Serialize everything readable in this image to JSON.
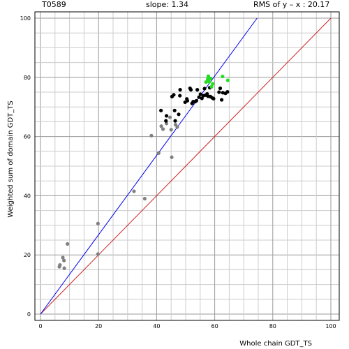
{
  "header": {
    "target_id": "T0589",
    "slope_text": "slope: 1.34",
    "rms_text": "RMS of  y – x : 20.17"
  },
  "chart_data": {
    "type": "scatter",
    "title": "",
    "xlabel": "Whole chain GDT_TS",
    "ylabel": "Weighted sum of domain GDT_TS",
    "xlim": [
      0,
      100
    ],
    "ylim": [
      0,
      100
    ],
    "xticks": [
      "0",
      "20",
      "40",
      "60",
      "80",
      "100"
    ],
    "yticks": [
      "0",
      "20",
      "40",
      "60",
      "80",
      "100"
    ],
    "grid": true,
    "lines": [
      {
        "name": "y = x",
        "color": "#cc2222",
        "points": [
          [
            0,
            0
          ],
          [
            100,
            100
          ]
        ]
      },
      {
        "name": "fit",
        "color": "#0000ee",
        "points": [
          [
            0,
            0
          ],
          [
            74.6,
            100
          ]
        ]
      }
    ],
    "series": [
      {
        "color": "#808080",
        "points": [
          [
            6.5,
            16
          ],
          [
            6.7,
            16.6
          ],
          [
            7.7,
            19.1
          ],
          [
            8.1,
            18.1
          ],
          [
            8.2,
            15.5
          ],
          [
            9.3,
            23.7
          ],
          [
            19.8,
            30.6
          ],
          [
            19.8,
            20.3
          ],
          [
            32.2,
            41.5
          ],
          [
            35.9,
            39.0
          ],
          [
            38.2,
            60.3
          ],
          [
            40.7,
            54.4
          ],
          [
            41.6,
            63.5
          ],
          [
            42.2,
            62.5
          ],
          [
            43.4,
            64.4
          ],
          [
            45.0,
            62.3
          ],
          [
            45.2,
            53.0
          ],
          [
            46.5,
            64.0
          ],
          [
            47.1,
            63.2
          ],
          [
            44.6,
            66.5
          ]
        ]
      },
      {
        "color": "#000000",
        "points": [
          [
            41.5,
            68.8
          ],
          [
            43.2,
            65.3
          ],
          [
            43.4,
            67.0
          ],
          [
            45.3,
            73.5
          ],
          [
            45.9,
            74.1
          ],
          [
            46.2,
            68.8
          ],
          [
            46.4,
            65.3
          ],
          [
            47.6,
            67.5
          ],
          [
            48.0,
            73.8
          ],
          [
            48.1,
            75.8
          ],
          [
            49.8,
            71.6
          ],
          [
            50.4,
            72.7
          ],
          [
            50.6,
            72.1
          ],
          [
            51.5,
            76.3
          ],
          [
            51.8,
            75.8
          ],
          [
            52.2,
            71.2
          ],
          [
            52.6,
            71.8
          ],
          [
            53.3,
            71.8
          ],
          [
            53.7,
            72.1
          ],
          [
            54.0,
            75.8
          ],
          [
            54.6,
            73.3
          ],
          [
            55.1,
            74.3
          ],
          [
            55.6,
            72.9
          ],
          [
            56.1,
            73.8
          ],
          [
            56.5,
            76.2
          ],
          [
            56.9,
            74.0
          ],
          [
            57.4,
            74.4
          ],
          [
            57.7,
            73.6
          ],
          [
            58.3,
            76.5
          ],
          [
            58.5,
            73.5
          ],
          [
            59.1,
            73.1
          ],
          [
            59.6,
            72.8
          ],
          [
            61.5,
            75.0
          ],
          [
            61.9,
            76.3
          ],
          [
            62.4,
            72.4
          ],
          [
            62.8,
            74.8
          ],
          [
            63.7,
            74.6
          ],
          [
            64.4,
            75.1
          ]
        ]
      },
      {
        "color": "#22dd22",
        "points": [
          [
            57.0,
            78.4
          ],
          [
            57.6,
            79.4
          ],
          [
            57.8,
            80.4
          ],
          [
            58.1,
            78.5
          ],
          [
            58.6,
            79.6
          ],
          [
            58.9,
            76.8
          ],
          [
            59.3,
            77.8
          ],
          [
            62.7,
            80.3
          ],
          [
            64.5,
            79.0
          ]
        ]
      }
    ]
  }
}
